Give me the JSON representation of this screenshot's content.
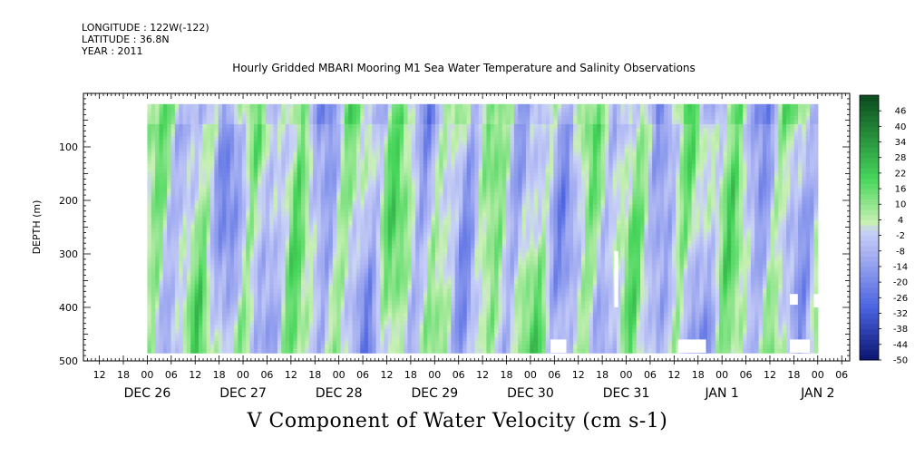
{
  "header": {
    "longitude": "LONGITUDE : 122W(-122)",
    "latitude": "LATITUDE : 36.8N",
    "year": "YEAR : 2011"
  },
  "plot_title": "Hourly Gridded MBARI Mooring M1 Sea Water Temperature and Salinity Observations",
  "caption": "V Component of Water Velocity (cm s-1)",
  "colors": {
    "min": "#0a1470",
    "blue": "#4a62e0",
    "lavender": "#b4bcf4",
    "pale_green": "#c8f0b4",
    "green": "#46d65a",
    "max": "#0a4a1e",
    "missing": "#ffffff"
  },
  "chart_data": {
    "type": "heatmap",
    "title": "Hourly Gridded MBARI Mooring M1 Sea Water Temperature and Salinity Observations",
    "xlabel": "",
    "ylabel": "DEPTH (m)",
    "x_range": [
      "2011-12-25T08:00",
      "2012-01-02T08:00"
    ],
    "data_x_range": [
      "2011-12-26T00:00",
      "2012-01-02T00:00"
    ],
    "y_range": [
      500,
      0
    ],
    "data_y_range": [
      20,
      485
    ],
    "y_ticks": [
      100,
      200,
      300,
      400,
      500
    ],
    "hour_tick_labels": [
      "12",
      "18",
      "00",
      "06",
      "12",
      "18",
      "00",
      "06",
      "12",
      "18",
      "00",
      "06",
      "12",
      "18",
      "00",
      "06",
      "12",
      "18",
      "00",
      "06",
      "12",
      "18",
      "00",
      "06",
      "12",
      "18",
      "00",
      "06",
      "12",
      "18",
      "00",
      "06"
    ],
    "day_labels": [
      {
        "label": "DEC 26",
        "date": "2011-12-26"
      },
      {
        "label": "DEC 27",
        "date": "2011-12-27"
      },
      {
        "label": "DEC 28",
        "date": "2011-12-28"
      },
      {
        "label": "DEC 29",
        "date": "2011-12-29"
      },
      {
        "label": "DEC 30",
        "date": "2011-12-30"
      },
      {
        "label": "DEC 31",
        "date": "2011-12-31"
      },
      {
        "label": "JAN  1",
        "date": "2012-01-01"
      },
      {
        "label": "JAN  2",
        "date": "2012-01-02"
      }
    ],
    "colorbar": {
      "levels": [
        46,
        40,
        34,
        28,
        22,
        16,
        10,
        4,
        -2,
        -8,
        -14,
        -20,
        -26,
        -32,
        -38,
        -44,
        -50
      ],
      "labels": [
        "46",
        "40",
        "34",
        "28",
        "22",
        "16",
        "10",
        "4",
        "-2",
        "-8",
        "-14",
        "-20",
        "-26",
        "-32",
        "-38",
        "-44",
        "-50"
      ],
      "range": [
        -50,
        52
      ]
    },
    "value_range_shown": [
      -20,
      20
    ],
    "missing_data_regions": [
      {
        "x": [
          "2011-12-30T21:00",
          "2011-12-30T22:00"
        ],
        "y": [
          295,
          400
        ]
      },
      {
        "x": [
          "2011-12-30T05:00",
          "2011-12-30T09:00"
        ],
        "y": [
          460,
          485
        ]
      },
      {
        "x": [
          "2011-12-31T13:00",
          "2011-12-31T20:00"
        ],
        "y": [
          460,
          485
        ]
      },
      {
        "x": [
          "2012-01-01T17:00",
          "2012-01-01T22:00"
        ],
        "y": [
          460,
          485
        ]
      },
      {
        "x": [
          "2012-01-01T17:00",
          "2012-01-01T19:00"
        ],
        "y": [
          375,
          395
        ]
      },
      {
        "x": [
          "2012-01-01T23:00",
          "2012-01-02T01:00"
        ],
        "y": [
          375,
          400
        ]
      }
    ],
    "grid": false,
    "legend": "colorbar right"
  }
}
